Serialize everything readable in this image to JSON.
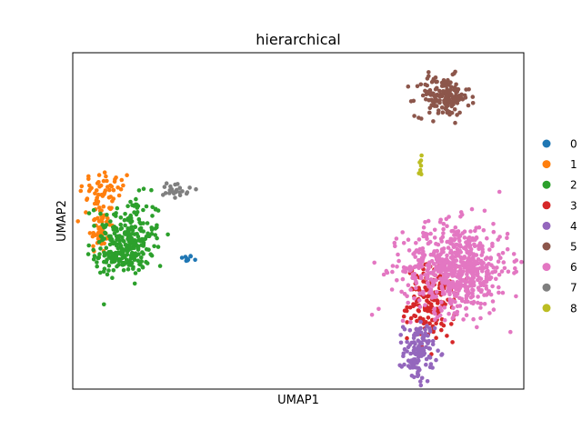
{
  "chart_data": {
    "type": "scatter",
    "title": "hierarchical",
    "xlabel": "UMAP1",
    "ylabel": "UMAP2",
    "xlim": [
      0,
      100
    ],
    "ylim": [
      0,
      100
    ],
    "grid": false,
    "legend_position": "right",
    "series": [
      {
        "name": "0",
        "color": "#1f77b4",
        "n": 10,
        "clusters": [
          {
            "cx": 25.2,
            "cy": 38.8,
            "sx": 0.7,
            "sy": 0.5
          }
        ]
      },
      {
        "name": "1",
        "color": "#ff7f0e",
        "n": 110,
        "clusters": [
          {
            "cx": 7.5,
            "cy": 59.0,
            "sx": 3.0,
            "sy": 3.2
          },
          {
            "cx": 6.0,
            "cy": 48.0,
            "sx": 1.2,
            "sy": 4.0
          }
        ]
      },
      {
        "name": "2",
        "color": "#2ca02c",
        "n": 300,
        "clusters": [
          {
            "cx": 12.5,
            "cy": 47.0,
            "sx": 3.6,
            "sy": 5.2
          },
          {
            "cx": 11.0,
            "cy": 40.0,
            "sx": 3.0,
            "sy": 3.0
          }
        ]
      },
      {
        "name": "3",
        "color": "#d62728",
        "n": 160,
        "clusters": [
          {
            "cx": 79.5,
            "cy": 25.5,
            "sx": 2.6,
            "sy": 5.5
          }
        ]
      },
      {
        "name": "4",
        "color": "#9467bd",
        "n": 120,
        "clusters": [
          {
            "cx": 76.8,
            "cy": 11.0,
            "sx": 1.7,
            "sy": 4.5
          }
        ]
      },
      {
        "name": "5",
        "color": "#8c564b",
        "n": 160,
        "clusters": [
          {
            "cx": 82.0,
            "cy": 87.0,
            "sx": 3.0,
            "sy": 3.0
          }
        ]
      },
      {
        "name": "6",
        "color": "#e377c2",
        "n": 650,
        "clusters": [
          {
            "cx": 85.0,
            "cy": 36.0,
            "sx": 5.8,
            "sy": 6.6
          }
        ]
      },
      {
        "name": "7",
        "color": "#7f7f7f",
        "n": 25,
        "clusters": [
          {
            "cx": 23.0,
            "cy": 59.5,
            "sx": 1.5,
            "sy": 1.2
          }
        ]
      },
      {
        "name": "8",
        "color": "#bcbd22",
        "n": 8,
        "clusters": [
          {
            "cx": 77.0,
            "cy": 65.5,
            "sx": 0.2,
            "sy": 3.0
          }
        ]
      }
    ]
  }
}
